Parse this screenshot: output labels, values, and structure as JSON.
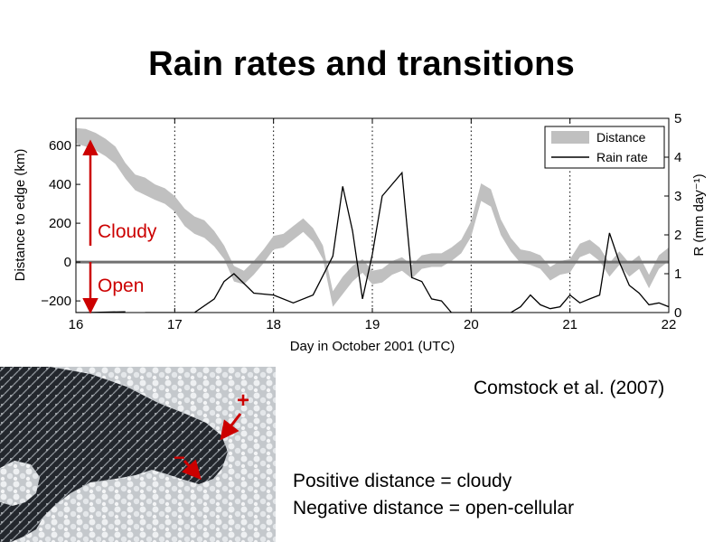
{
  "slide": {
    "title": "Rain rates and transitions",
    "citation": "Comstock et al. (2007)",
    "definitions": [
      "Positive distance = cloudy",
      "Negative distance = open-cellular"
    ]
  },
  "annotations": {
    "cloudy": "Cloudy",
    "open": "Open",
    "plus": "+",
    "minus": "−"
  },
  "colors": {
    "distance_band": "#c0c0c0",
    "rain_line": "#000000",
    "zero_line": "#707070",
    "annotation": "#cc0000"
  },
  "chart_data": {
    "type": "line",
    "xlabel": "Day in October 2001 (UTC)",
    "ylabel_left": "Distance to edge (km)",
    "ylabel_right": "R (mm day⁻¹)",
    "xlim": [
      16,
      22
    ],
    "ylim_left": [
      -260,
      740
    ],
    "ylim_right": [
      0,
      5
    ],
    "x_ticks": [
      16,
      17,
      18,
      19,
      20,
      21,
      22
    ],
    "y_ticks_left": [
      -200,
      0,
      200,
      400,
      600
    ],
    "y_ticks_right": [
      0,
      1,
      2,
      3,
      4,
      5
    ],
    "grid": "vertical dotted at day boundaries",
    "legend_position": "top-right",
    "series": [
      {
        "name": "Distance",
        "style": "band",
        "x": [
          16.0,
          16.1,
          16.2,
          16.3,
          16.4,
          16.5,
          16.6,
          16.7,
          16.8,
          16.9,
          17.0,
          17.1,
          17.2,
          17.3,
          17.4,
          17.5,
          17.6,
          17.7,
          17.8,
          17.9,
          18.0,
          18.1,
          18.2,
          18.3,
          18.4,
          18.5,
          18.6,
          18.7,
          18.8,
          18.9,
          19.0,
          19.1,
          19.2,
          19.3,
          19.4,
          19.5,
          19.6,
          19.7,
          19.8,
          19.9,
          20.0,
          20.1,
          20.2,
          20.3,
          20.4,
          20.5,
          20.6,
          20.7,
          20.8,
          20.9,
          21.0,
          21.1,
          21.2,
          21.3,
          21.4,
          21.5,
          21.6,
          21.7,
          21.8,
          21.9,
          22.0
        ],
        "center": [
          650,
          640,
          620,
          590,
          550,
          470,
          410,
          390,
          360,
          340,
          300,
          230,
          190,
          170,
          120,
          50,
          -60,
          -80,
          -30,
          30,
          100,
          110,
          150,
          190,
          140,
          50,
          -190,
          -120,
          -60,
          -20,
          -80,
          -70,
          -30,
          -10,
          -50,
          0,
          10,
          10,
          40,
          80,
          170,
          360,
          330,
          180,
          90,
          30,
          20,
          0,
          -60,
          -30,
          -20,
          60,
          80,
          40,
          -40,
          20,
          -40,
          0,
          -100,
          0,
          40
        ],
        "half_width": [
          40,
          45,
          45,
          45,
          45,
          40,
          40,
          45,
          40,
          40,
          40,
          45,
          45,
          45,
          40,
          35,
          40,
          35,
          35,
          35,
          35,
          35,
          35,
          35,
          35,
          35,
          40,
          45,
          40,
          35,
          35,
          35,
          35,
          35,
          35,
          35,
          35,
          35,
          35,
          35,
          40,
          45,
          45,
          40,
          35,
          35,
          35,
          35,
          35,
          35,
          35,
          35,
          35,
          35,
          35,
          35,
          35,
          35,
          35,
          35,
          35
        ]
      },
      {
        "name": "Rain rate",
        "style": "line",
        "segments": [
          {
            "x": [
              16.0,
              16.1,
              16.5
            ],
            "y": [
              0.0,
              0.0,
              0.02
            ]
          },
          {
            "x": [
              16.7,
              16.8,
              17.0,
              17.2,
              17.4,
              17.5,
              17.6,
              17.8,
              18.0,
              18.2,
              18.4,
              18.6,
              18.7,
              18.8,
              18.9,
              19.0,
              19.1,
              19.3,
              19.4,
              19.5,
              19.6,
              19.7,
              19.8,
              20.0,
              20.2,
              20.4,
              20.5,
              20.6,
              20.7,
              20.8,
              20.9,
              21.0,
              21.1,
              21.2,
              21.3,
              21.4,
              21.5,
              21.6,
              21.7,
              21.8,
              21.9,
              22.0
            ],
            "y": [
              0.0,
              0.0,
              0.0,
              0.0,
              0.35,
              0.8,
              1.0,
              0.5,
              0.45,
              0.25,
              0.45,
              1.45,
              3.25,
              2.1,
              0.35,
              1.5,
              3.0,
              3.6,
              0.9,
              0.8,
              0.35,
              0.3,
              0.0,
              0.0,
              0.0,
              0.0,
              0.15,
              0.45,
              0.2,
              0.1,
              0.15,
              0.45,
              0.25,
              0.35,
              0.45,
              2.05,
              1.3,
              0.7,
              0.5,
              0.2,
              0.25,
              0.15
            ]
          }
        ]
      }
    ]
  }
}
